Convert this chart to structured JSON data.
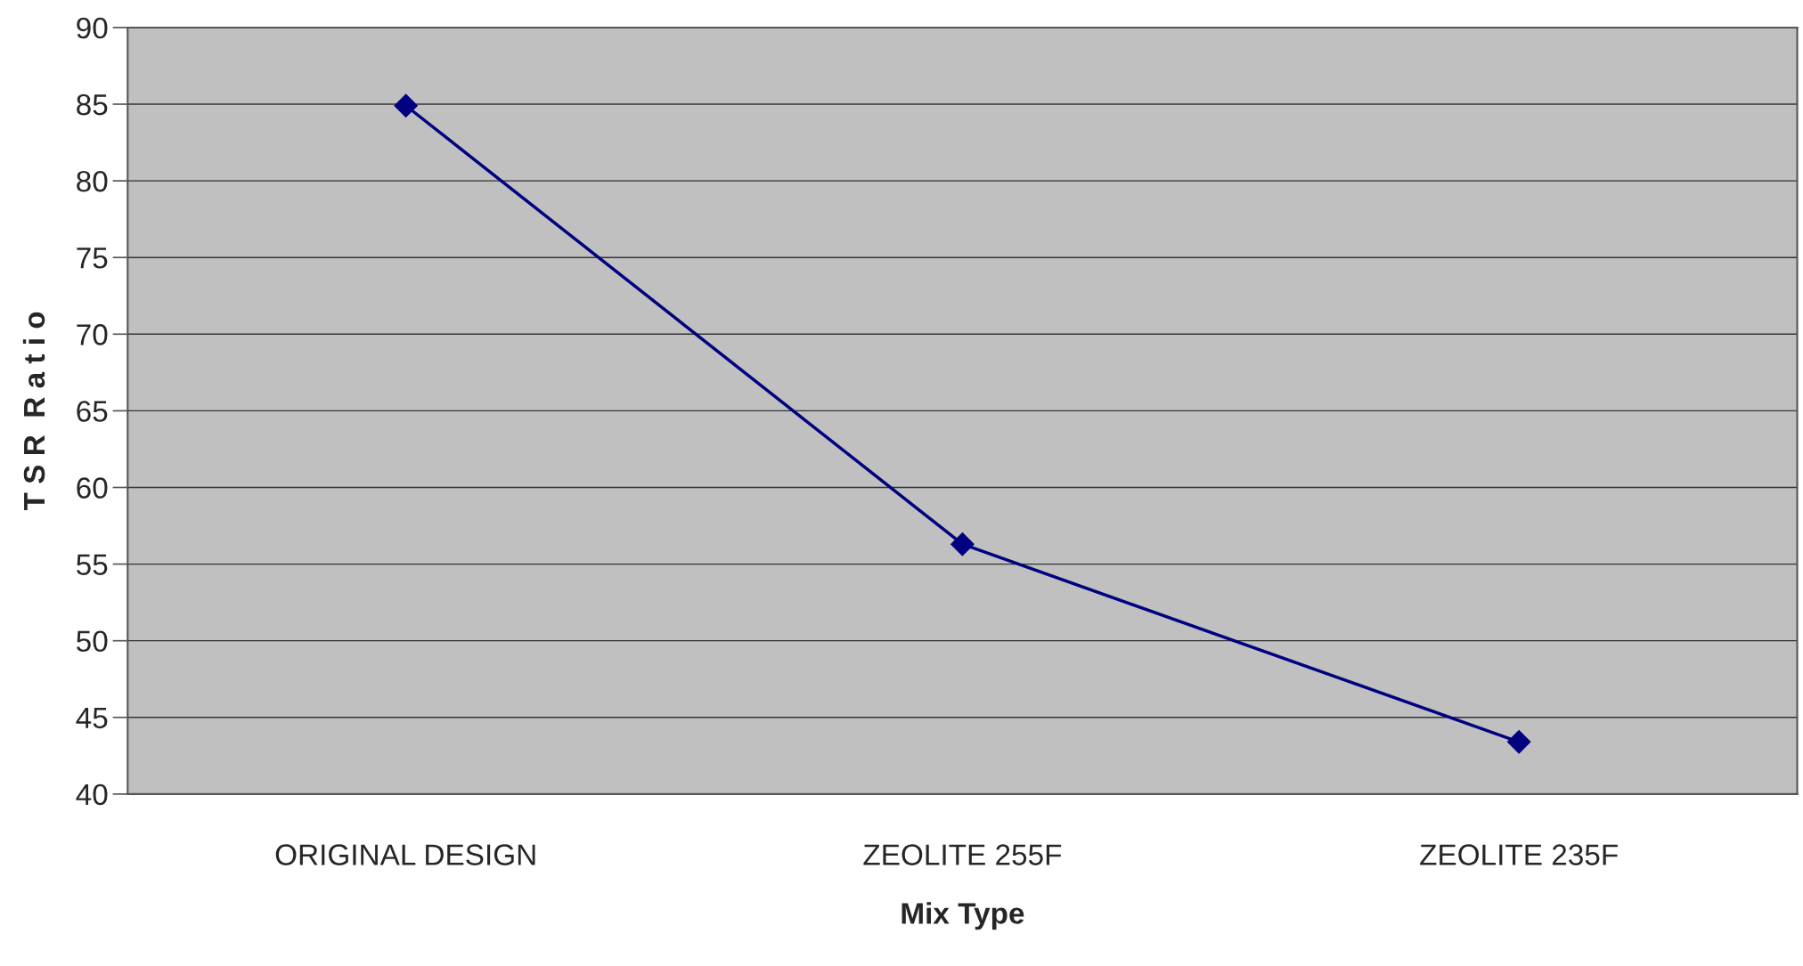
{
  "chart_data": {
    "type": "line",
    "xlabel": "Mix Type",
    "ylabel": "T S R  R a t i o",
    "categories": [
      "ORIGINAL DESIGN",
      "ZEOLITE 255F",
      "ZEOLITE 235F"
    ],
    "series": [
      {
        "color": "#000080",
        "values": [
          84.9,
          56.3,
          43.4
        ]
      }
    ],
    "ylim": [
      40,
      90
    ],
    "yticks": [
      40,
      45,
      50,
      55,
      60,
      65,
      70,
      75,
      80,
      85,
      90
    ],
    "grid": "y",
    "marker": "diamond",
    "line_style": "solid"
  }
}
